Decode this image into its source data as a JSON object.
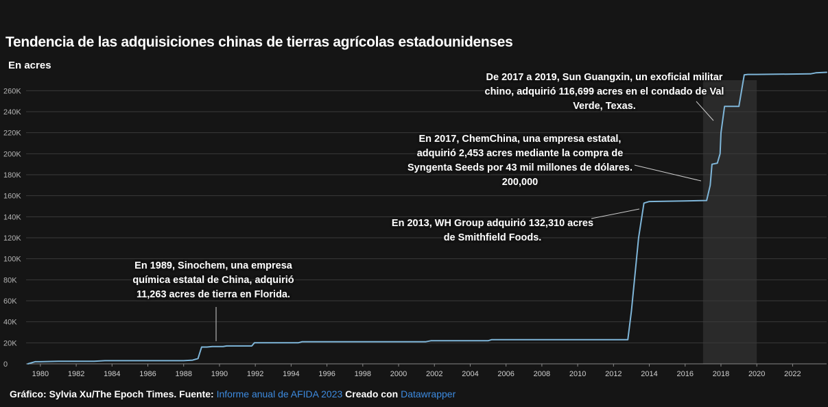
{
  "header": {
    "title": "Tendencia de las adquisiciones chinas de tierras agrícolas estadounidenses",
    "subtitle": "En acres"
  },
  "annotations": {
    "a1989": "En 1989, Sinochem, una empresa química estatal de China, adquirió 11,263 acres de tierra en Florida.",
    "a2013": "En 2013, WH Group adquirió 132,310 acres de Smithfield Foods.",
    "a2017": "En 2017, ChemChina, una empresa estatal, adquirió 2,453 acres mediante la compra de Syngenta Seeds por 43 mil millones de dólares. 200,000",
    "a2019": "De 2017 a 2019, Sun Guangxin, un exoficial militar chino, adquirió 116,699 acres en el condado de Val Verde, Texas."
  },
  "footer": {
    "prefix": "Gráfico: Sylvia Xu/The Epoch Times. Fuente:",
    "source_link": "Informe anual de AFIDA 2023",
    "middle": "Creado con",
    "tool_link": "Datawrapper"
  },
  "colors": {
    "background": "#151515",
    "line": "#7fb6d9",
    "highlight_band": "#2a2a2a",
    "grid": "#3a3a3a",
    "link": "#3d8be0"
  },
  "chart_data": {
    "type": "line",
    "xlim": [
      1979.2,
      2023.9
    ],
    "ylim": [
      0,
      270000
    ],
    "yticks": [
      0,
      20000,
      40000,
      60000,
      80000,
      100000,
      120000,
      140000,
      160000,
      180000,
      200000,
      220000,
      240000,
      260000
    ],
    "ytick_labels": [
      "0",
      "20K",
      "40K",
      "60K",
      "80K",
      "100K",
      "120K",
      "140K",
      "160K",
      "180K",
      "200K",
      "220K",
      "240K",
      "260K"
    ],
    "xticks": [
      1980,
      1982,
      1984,
      1986,
      1988,
      1990,
      1992,
      1994,
      1996,
      1998,
      2000,
      2002,
      2004,
      2006,
      2008,
      2010,
      2012,
      2014,
      2016,
      2018,
      2020,
      2022
    ],
    "xtick_labels": [
      "1980",
      "1982",
      "1984",
      "1986",
      "1988",
      "1990",
      "1992",
      "1994",
      "1996",
      "1998",
      "2000",
      "2002",
      "2004",
      "2006",
      "2008",
      "2010",
      "2012",
      "2014",
      "2016",
      "2018",
      "2020",
      "2022"
    ],
    "highlight_range": [
      2017.0,
      2020.0
    ],
    "grid": true,
    "series": [
      {
        "x": [
          1979.3,
          1979.7,
          1980.0,
          1981.0,
          1983.0,
          1983.6,
          1986.0,
          1988.0,
          1988.5,
          1988.8,
          1989.0,
          1989.3,
          1989.6,
          1990.2,
          1990.4,
          1991.8,
          1991.95,
          1993.0,
          1994.4,
          1994.6,
          1996.0,
          2001.5,
          2001.8,
          2004.0,
          2005.0,
          2005.2,
          2008.0,
          2012.8,
          2013.0,
          2013.4,
          2013.7,
          2014.0,
          2016.0,
          2017.2,
          2017.4,
          2017.5,
          2017.8,
          2017.95,
          2018.0,
          2018.2,
          2018.5,
          2019.0,
          2019.3,
          2019.5,
          2020.0,
          2023.0,
          2023.3,
          2023.9
        ],
        "y": [
          0,
          2000,
          2000,
          2500,
          2500,
          3000,
          3000,
          3000,
          3500,
          5000,
          16000,
          16000,
          16500,
          16500,
          17000,
          17000,
          20000,
          20000,
          20000,
          21000,
          21000,
          21000,
          22000,
          22000,
          22000,
          23000,
          23000,
          23000,
          50000,
          120000,
          153000,
          154500,
          155000,
          155500,
          170000,
          190000,
          191000,
          200000,
          220000,
          245000,
          245000,
          245000,
          275000,
          275500,
          275500,
          276000,
          277000,
          277500
        ]
      }
    ]
  }
}
